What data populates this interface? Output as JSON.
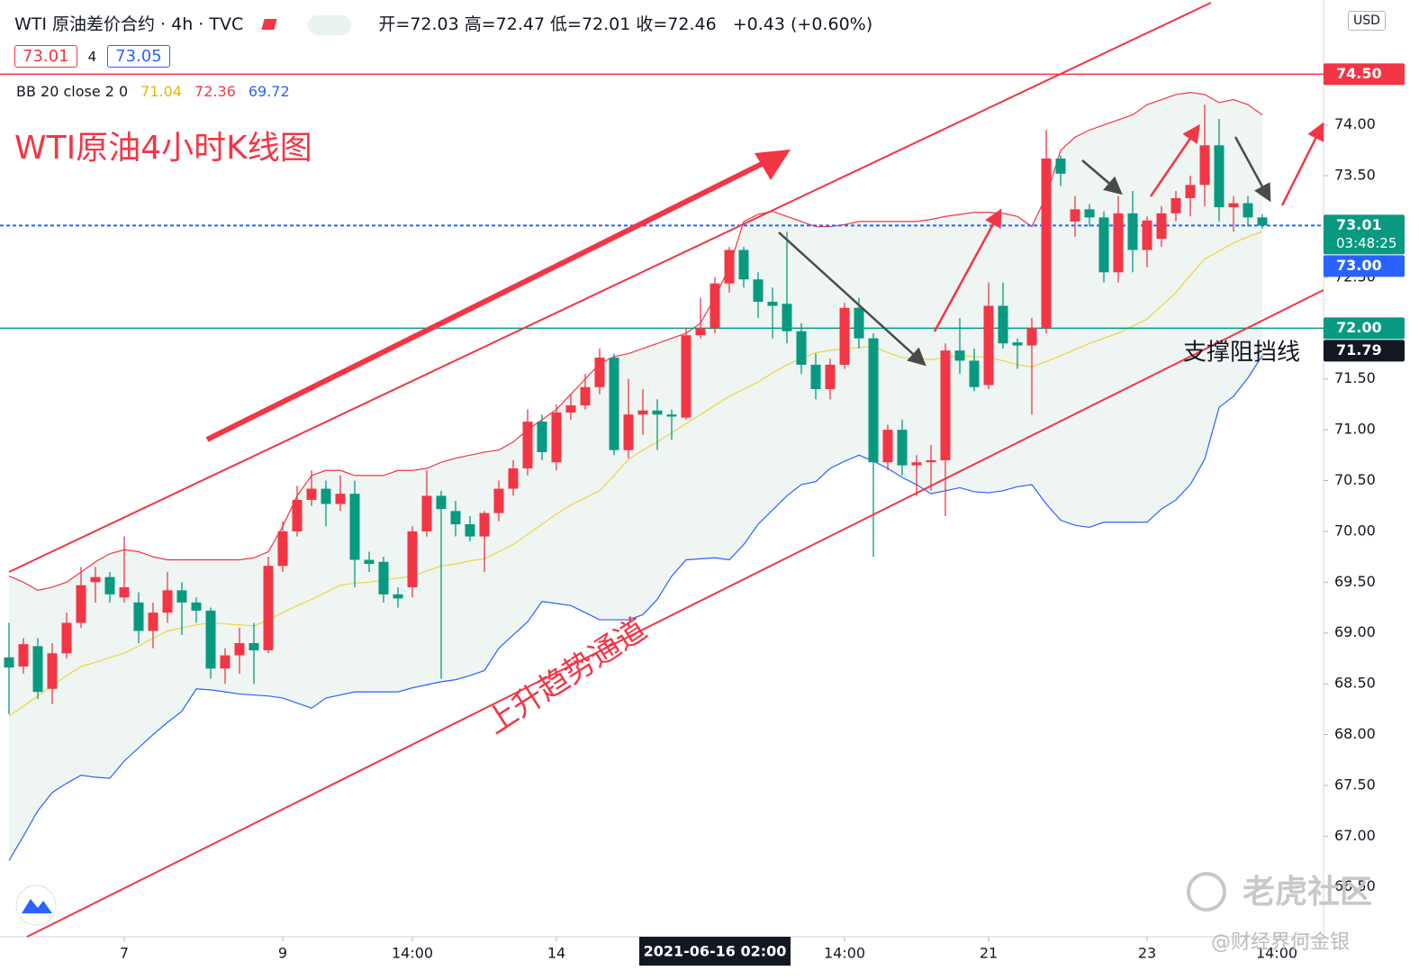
{
  "header": {
    "symbol": "WTI 原油差价合约",
    "interval": "4h",
    "source": "TVC",
    "ohlc": [
      {
        "label": "开=",
        "value": 72.03
      },
      {
        "label": "高=",
        "value": 72.47
      },
      {
        "label": "低=",
        "value": 72.01
      },
      {
        "label": "收=",
        "value": 72.46
      }
    ],
    "change": "+0.43 (+0.60%)",
    "quote": {
      "bid": 73.01,
      "spread": 4,
      "ask": 73.05
    }
  },
  "chart_data": {
    "type": "candlestick",
    "title": "WTI原油4小时K线图",
    "up_color": "#f23645",
    "down_color": "#089981",
    "open": [
      68.76,
      68.67,
      68.87,
      68.45,
      68.8,
      69.1,
      69.5,
      69.55,
      69.35,
      69.3,
      69.02,
      69.2,
      69.42,
      69.3,
      69.22,
      68.65,
      68.78,
      68.9,
      68.83,
      69.66,
      70.0,
      70.31,
      70.42,
      70.27,
      70.37,
      69.72,
      69.7,
      69.38,
      69.45,
      70.0,
      70.35,
      70.2,
      70.07,
      69.95,
      70.18,
      70.42,
      70.62,
      71.08,
      70.68,
      71.17,
      71.24,
      71.42,
      71.71,
      70.8,
      71.15,
      71.19,
      71.15,
      71.12,
      71.93,
      72.0,
      72.44,
      72.77,
      72.48,
      72.26,
      72.24,
      71.97,
      71.64,
      71.4,
      71.64,
      72.2,
      71.9,
      70.68,
      71.0,
      70.65,
      70.68,
      70.7,
      71.78,
      71.68,
      71.44,
      72.22,
      71.86,
      71.83,
      72.0,
      73.67,
      73.05,
      73.17,
      73.09,
      72.55,
      73.13,
      72.77,
      72.88,
      73.13,
      73.28,
      73.41,
      73.8,
      73.19,
      73.23,
      73.09
    ],
    "high": [
      69.1,
      68.95,
      68.95,
      68.9,
      69.2,
      69.65,
      69.65,
      69.6,
      69.95,
      69.4,
      69.3,
      69.6,
      69.5,
      69.35,
      69.25,
      68.85,
      69.05,
      69.1,
      69.75,
      70.1,
      70.45,
      70.6,
      70.5,
      70.55,
      70.5,
      69.8,
      69.75,
      69.45,
      70.05,
      70.6,
      70.4,
      70.3,
      70.15,
      70.2,
      70.5,
      70.7,
      71.2,
      71.15,
      71.25,
      71.35,
      71.55,
      71.8,
      71.75,
      71.5,
      71.4,
      71.3,
      71.2,
      72.0,
      72.3,
      72.5,
      72.8,
      72.8,
      72.55,
      72.4,
      72.95,
      72.05,
      71.75,
      71.7,
      72.25,
      72.3,
      71.95,
      71.05,
      71.1,
      70.75,
      70.85,
      71.85,
      72.1,
      71.8,
      72.45,
      72.45,
      71.9,
      72.1,
      73.95,
      73.7,
      73.3,
      73.22,
      73.15,
      73.3,
      73.35,
      73.1,
      73.2,
      73.35,
      73.5,
      74.2,
      74.06,
      73.3,
      73.3,
      73.12
    ],
    "low": [
      68.2,
      68.6,
      68.35,
      68.3,
      68.75,
      69.05,
      69.3,
      69.3,
      69.3,
      68.9,
      68.85,
      69.1,
      68.98,
      69.1,
      68.55,
      68.5,
      68.6,
      68.5,
      68.8,
      69.6,
      69.95,
      70.25,
      70.05,
      70.2,
      69.45,
      69.6,
      69.3,
      69.25,
      69.35,
      69.95,
      68.55,
      69.95,
      69.9,
      69.6,
      70.1,
      70.35,
      70.55,
      70.7,
      70.6,
      71.1,
      71.2,
      71.35,
      70.75,
      70.72,
      70.95,
      70.8,
      70.9,
      71.1,
      71.9,
      71.95,
      72.35,
      72.4,
      72.1,
      71.9,
      71.85,
      71.55,
      71.3,
      71.3,
      71.6,
      71.8,
      69.75,
      70.6,
      70.55,
      70.35,
      70.4,
      70.15,
      71.55,
      71.38,
      71.4,
      71.8,
      71.6,
      71.15,
      71.95,
      73.4,
      72.9,
      73.0,
      72.45,
      72.45,
      72.55,
      72.6,
      72.8,
      73.05,
      73.1,
      73.2,
      73.05,
      72.95,
      73.0,
      72.98
    ],
    "close": [
      68.66,
      68.89,
      68.42,
      68.8,
      69.1,
      69.47,
      69.55,
      69.38,
      69.45,
      69.02,
      69.2,
      69.42,
      69.3,
      69.22,
      68.65,
      68.78,
      68.9,
      68.83,
      69.66,
      70.0,
      70.31,
      70.42,
      70.27,
      70.37,
      69.72,
      69.68,
      69.38,
      69.34,
      70.0,
      70.35,
      70.22,
      70.07,
      69.95,
      70.18,
      70.42,
      70.62,
      71.08,
      70.78,
      71.17,
      71.24,
      71.42,
      71.71,
      70.8,
      71.15,
      71.19,
      71.15,
      71.13,
      71.93,
      72.0,
      72.44,
      72.77,
      72.48,
      72.26,
      72.22,
      71.97,
      71.64,
      71.4,
      71.64,
      72.2,
      71.9,
      70.68,
      71.0,
      70.65,
      70.68,
      70.7,
      71.78,
      71.68,
      71.42,
      72.22,
      71.85,
      71.83,
      72.0,
      73.67,
      73.52,
      73.17,
      73.09,
      72.55,
      73.13,
      72.77,
      73.06,
      73.13,
      73.28,
      73.41,
      73.8,
      73.19,
      73.23,
      73.09,
      73.01
    ],
    "bollinger": {
      "label": "BB 20 close 2 0",
      "legend": [
        {
          "value": 71.04,
          "color": "#e0b800"
        },
        {
          "value": 72.36,
          "color": "#f23645"
        },
        {
          "value": 69.72,
          "color": "#2962ff"
        }
      ],
      "fill": "#eef5f3",
      "upper": {
        "color": "#f23645",
        "values": [
          69.56,
          69.5,
          69.42,
          69.45,
          69.5,
          69.6,
          69.7,
          69.78,
          69.82,
          69.8,
          69.75,
          69.72,
          69.72,
          69.72,
          69.72,
          69.72,
          69.72,
          69.74,
          69.8,
          70.05,
          70.35,
          70.55,
          70.6,
          70.6,
          70.55,
          70.55,
          70.55,
          70.6,
          70.6,
          70.62,
          70.68,
          70.72,
          70.75,
          70.78,
          70.8,
          70.88,
          71.0,
          71.1,
          71.2,
          71.35,
          71.5,
          71.65,
          71.72,
          71.75,
          71.8,
          71.85,
          71.9,
          71.95,
          72.05,
          72.3,
          72.6,
          73.05,
          73.12,
          73.15,
          73.1,
          73.05,
          73.0,
          73.0,
          73.02,
          73.05,
          73.05,
          73.05,
          73.05,
          73.05,
          73.07,
          73.1,
          73.12,
          73.14,
          73.14,
          73.13,
          73.1,
          73.0,
          73.3,
          73.75,
          73.88,
          73.95,
          74.0,
          74.05,
          74.1,
          74.2,
          74.25,
          74.3,
          74.32,
          74.3,
          74.22,
          74.25,
          74.2,
          74.1
        ]
      },
      "basis": {
        "color": "#f0d43a",
        "values": [
          68.18,
          68.28,
          68.38,
          68.48,
          68.58,
          68.67,
          68.71,
          68.76,
          68.8,
          68.87,
          68.95,
          69.02,
          69.05,
          69.08,
          69.1,
          69.09,
          69.08,
          69.07,
          69.13,
          69.2,
          69.27,
          69.33,
          69.4,
          69.47,
          69.49,
          69.5,
          69.52,
          69.54,
          69.56,
          69.61,
          69.66,
          69.68,
          69.71,
          69.73,
          69.8,
          69.87,
          69.97,
          70.07,
          70.17,
          70.26,
          70.33,
          70.4,
          70.55,
          70.71,
          70.8,
          70.88,
          70.97,
          71.06,
          71.15,
          71.24,
          71.33,
          71.4,
          71.47,
          71.56,
          71.64,
          71.7,
          71.76,
          71.78,
          71.8,
          71.81,
          71.82,
          71.76,
          71.71,
          71.7,
          71.69,
          71.71,
          71.73,
          71.72,
          71.71,
          71.68,
          71.64,
          71.62,
          71.67,
          71.73,
          71.79,
          71.85,
          71.9,
          71.95,
          72.02,
          72.09,
          72.22,
          72.35,
          72.52,
          72.68,
          72.76,
          72.84,
          72.9,
          72.95
        ]
      },
      "lower": {
        "color": "#2962ff",
        "values": [
          66.76,
          67.0,
          67.25,
          67.43,
          67.52,
          67.6,
          67.58,
          67.57,
          67.74,
          67.87,
          68.0,
          68.12,
          68.23,
          68.45,
          68.44,
          68.42,
          68.4,
          68.39,
          68.38,
          68.36,
          68.31,
          68.26,
          68.36,
          68.39,
          68.42,
          68.42,
          68.42,
          68.42,
          68.46,
          68.49,
          68.52,
          68.54,
          68.58,
          68.63,
          68.85,
          68.98,
          69.11,
          69.31,
          69.29,
          69.27,
          69.2,
          69.13,
          69.13,
          69.13,
          69.18,
          69.33,
          69.56,
          69.72,
          69.73,
          69.74,
          69.72,
          69.87,
          70.07,
          70.21,
          70.35,
          70.46,
          70.49,
          70.62,
          70.69,
          70.75,
          70.69,
          70.62,
          70.53,
          70.46,
          70.37,
          70.4,
          70.43,
          70.39,
          70.38,
          70.4,
          70.44,
          70.46,
          70.27,
          70.11,
          70.06,
          70.04,
          70.09,
          70.09,
          70.09,
          70.09,
          70.22,
          70.31,
          70.46,
          70.71,
          71.22,
          71.33,
          71.51,
          71.73
        ]
      }
    },
    "ylim": [
      66.01,
      75.23
    ],
    "yticks": [
      {
        "value": 66.5,
        "label": "66.50"
      },
      {
        "value": 67,
        "label": "67.00"
      },
      {
        "value": 67.5,
        "label": "67.50"
      },
      {
        "value": 68,
        "label": "68.00"
      },
      {
        "value": 68.5,
        "label": "68.50"
      },
      {
        "value": 69,
        "label": "69.00"
      },
      {
        "value": 69.5,
        "label": "69.50"
      },
      {
        "value": 70,
        "label": "70.00"
      },
      {
        "value": 70.5,
        "label": "70.50"
      },
      {
        "value": 71,
        "label": "71.00"
      },
      {
        "value": 71.5,
        "label": "71.50"
      },
      {
        "value": 72,
        "label": "72.00"
      },
      {
        "value": 72.5,
        "label": "72.50"
      },
      {
        "value": 73,
        "label": "73.00"
      },
      {
        "value": 73.5,
        "label": "73.50"
      },
      {
        "value": 74,
        "label": "74.00"
      }
    ],
    "currency": "USD",
    "xlim": [
      -0.625,
      91.25
    ],
    "xticks": [
      {
        "value": 8,
        "label": "7"
      },
      {
        "value": 19,
        "label": "9"
      },
      {
        "value": 28,
        "label": "14:00"
      },
      {
        "value": 38,
        "label": "14"
      },
      {
        "value": 58,
        "label": "14:00"
      },
      {
        "value": 68,
        "label": "21"
      },
      {
        "value": 79,
        "label": "23"
      },
      {
        "value": 88,
        "label": "14:00"
      }
    ],
    "crosshair": {
      "value": 49,
      "label": "2021-06-16  02:00"
    },
    "lines": [
      {
        "value": 74.5,
        "color": "#f23645",
        "dashed": false
      },
      {
        "value": 73.01,
        "color": "#2962ff",
        "dashed": true
      },
      {
        "value": 72,
        "color": "#089981",
        "dashed": false
      }
    ],
    "price_tags": [
      {
        "value": 74.5,
        "label": "74.50",
        "color": "#f23645"
      },
      {
        "value": 73.01,
        "countdown": "03:48:25",
        "color": "#089981"
      },
      {
        "value": 73,
        "label": "73.00",
        "color": "#2962ff"
      },
      {
        "value": 72,
        "label": "72.00",
        "color": "#089981"
      },
      {
        "value": 71.79,
        "color": "#131722"
      }
    ],
    "grid": false
  },
  "annotations": {
    "channel_label": "上升趋势通道",
    "support_label": "支撑阻挡线"
  },
  "watermark": {
    "logo_text": "老虎社区",
    "credit": "@财经界何金银"
  }
}
